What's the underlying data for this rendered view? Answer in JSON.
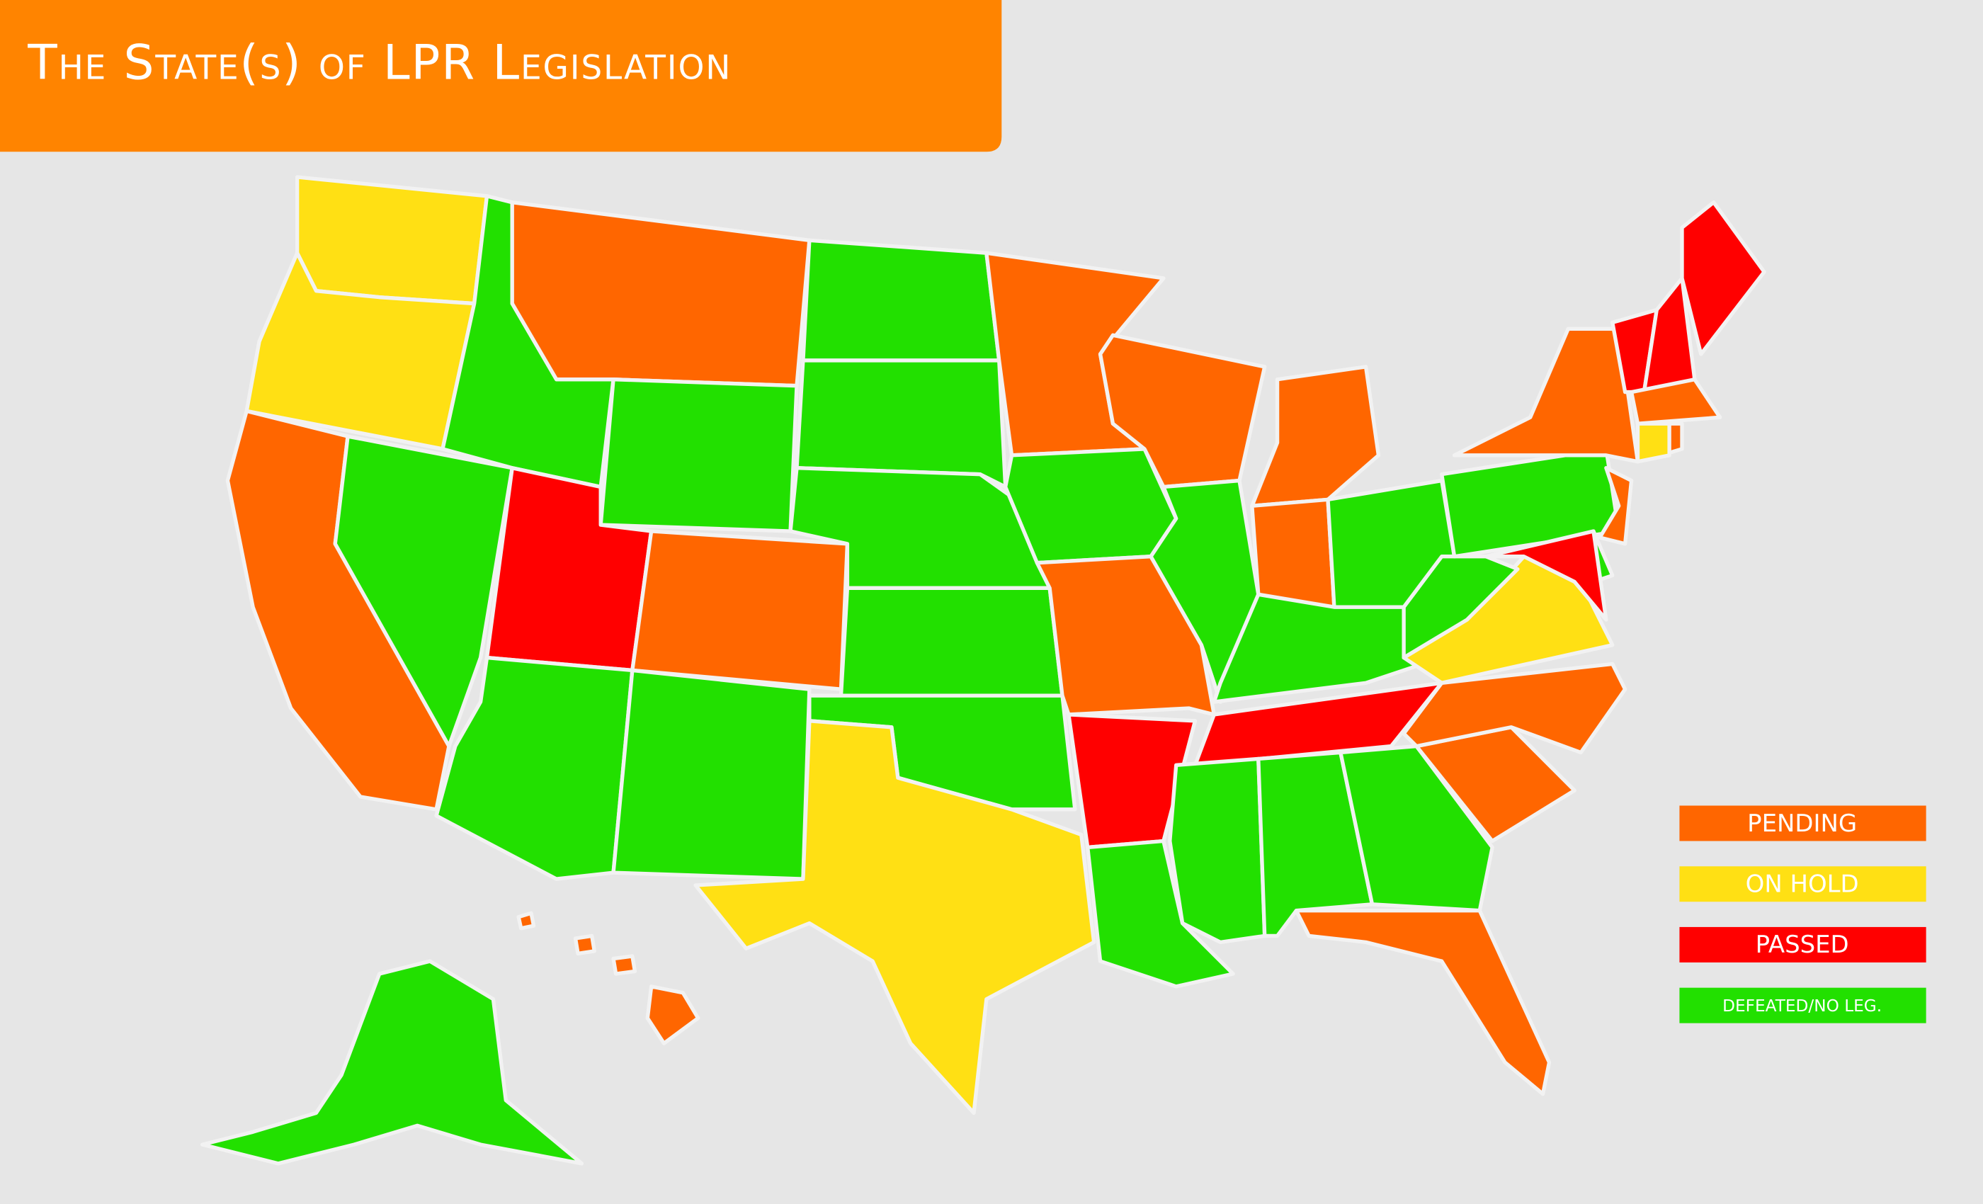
{
  "header": {
    "title": "The State(s) of LPR Legislation"
  },
  "legend": {
    "items": [
      {
        "label": "Pending",
        "color": "#ff6600"
      },
      {
        "label": "On Hold",
        "color": "#ffe014"
      },
      {
        "label": "Passed",
        "color": "#ff0000"
      },
      {
        "label": "Defeated/No Leg.",
        "color": "#22e000"
      }
    ]
  }
}
